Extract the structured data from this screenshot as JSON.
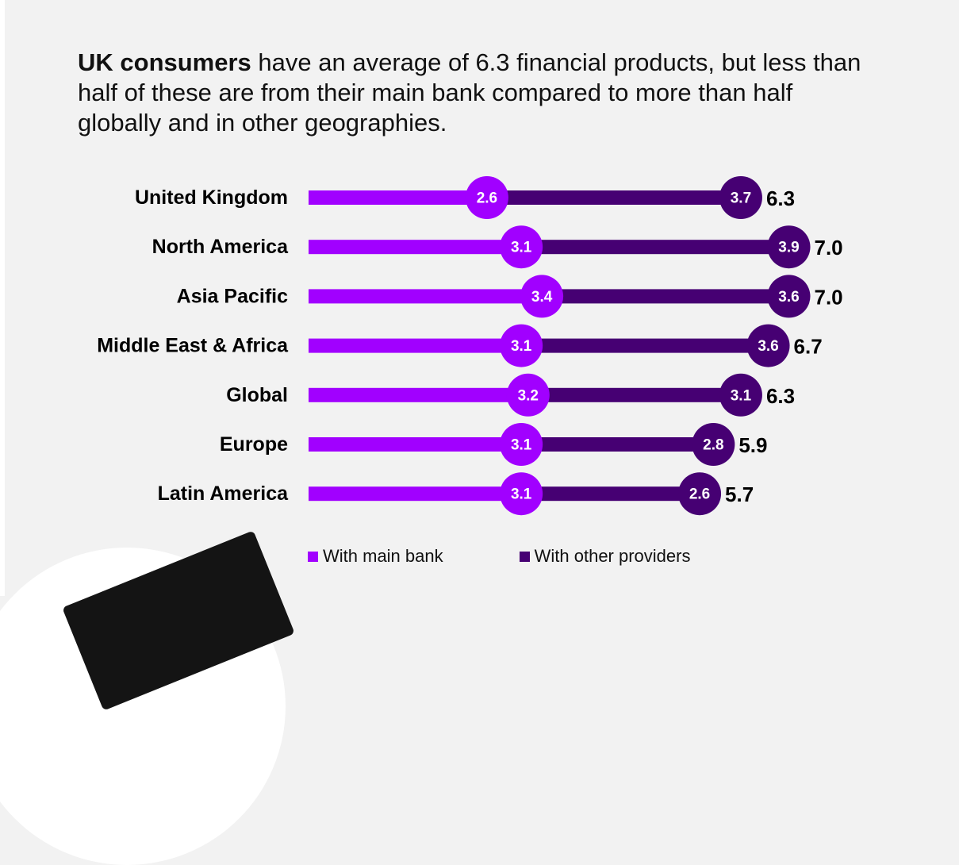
{
  "headline": {
    "bold": "UK consumers",
    "rest": " have an average of 6.3 financial products, but less than half of these are from their main bank compared to more than half globally and in other geographies."
  },
  "colors": {
    "main_bank": "#a100ff",
    "other_providers": "#460073",
    "background": "#f2f2f2"
  },
  "chart_data": {
    "type": "bar",
    "stacked": true,
    "orientation": "horizontal",
    "title": "UK consumers have an average of 6.3 financial products, but less than half of these are from their main bank compared to more than half globally and in other geographies.",
    "categories": [
      "United Kingdom",
      "North America",
      "Asia Pacific",
      "Middle East & Africa",
      "Global",
      "Europe",
      "Latin America"
    ],
    "series": [
      {
        "name": "With main bank",
        "values": [
          2.6,
          3.1,
          3.4,
          3.1,
          3.2,
          3.1,
          3.1
        ]
      },
      {
        "name": "With other providers",
        "values": [
          3.7,
          3.9,
          3.6,
          3.6,
          3.1,
          2.8,
          2.6
        ]
      }
    ],
    "totals": [
      "6.3",
      "7.0",
      "7.0",
      "6.7",
      "6.3",
      "5.9",
      "5.7"
    ],
    "xlim": [
      0,
      7.2
    ],
    "legend_position": "bottom"
  }
}
